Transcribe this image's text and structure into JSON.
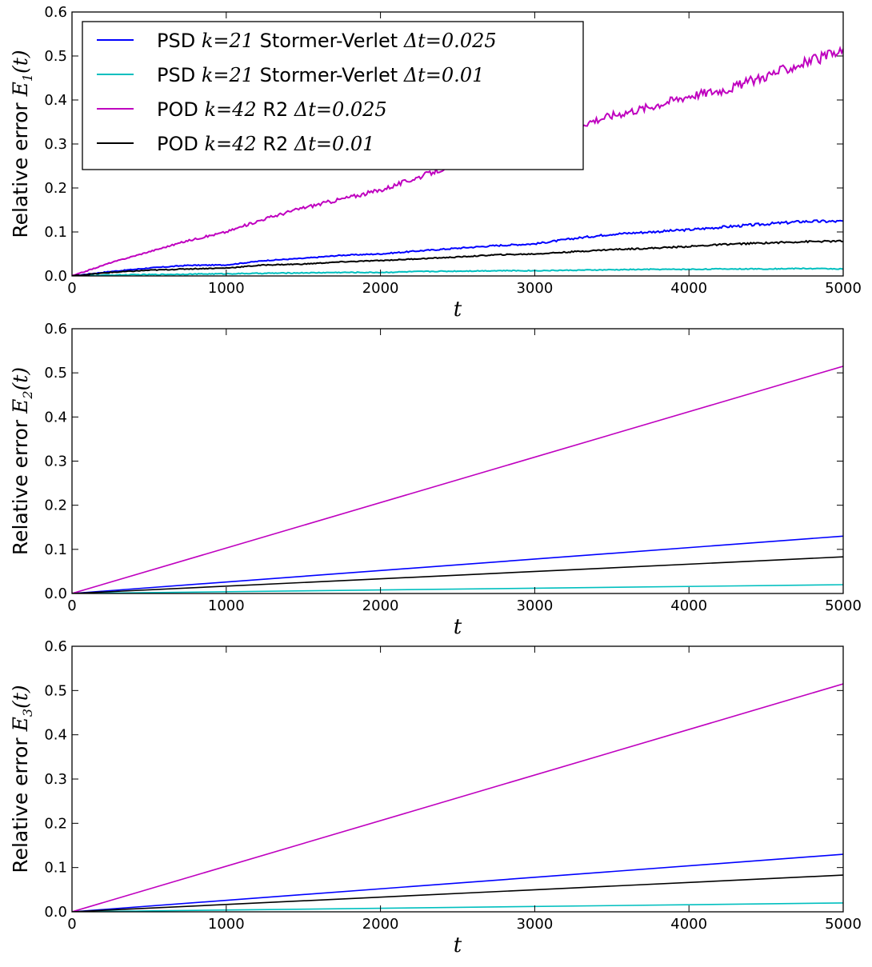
{
  "legend_entries": [
    {
      "pre": "PSD ",
      "math1": "k=21",
      "mid": " Stormer-Verlet ",
      "math2": "Δt=0.025",
      "color": "#0000ff"
    },
    {
      "pre": "PSD ",
      "math1": "k=21",
      "mid": " Stormer-Verlet ",
      "math2": "Δt=0.01",
      "color": "#00bfbf"
    },
    {
      "pre": "POD ",
      "math1": "k=42",
      "mid": " R2 ",
      "math2": "Δt=0.025",
      "color": "#bf00bf"
    },
    {
      "pre": "POD ",
      "math1": "k=42",
      "mid": " R2 ",
      "math2": "Δt=0.01",
      "color": "#000000"
    }
  ],
  "chart_data": [
    {
      "type": "line",
      "ylabel_text": "Relative error ",
      "ylabel_math": "E",
      "ylabel_sub": "1",
      "ylabel_arg": "(t)",
      "xlabel": "t",
      "xlim": [
        0,
        5000
      ],
      "ylim": [
        0,
        0.6
      ],
      "xticks": [
        "0",
        "1000",
        "2000",
        "3000",
        "4000",
        "5000"
      ],
      "yticks": [
        "0.0",
        "0.1",
        "0.2",
        "0.3",
        "0.4",
        "0.5",
        "0.6"
      ],
      "legend": "upper-left",
      "series": [
        {
          "name": "PSD k=21 Stormer-Verlet Δt=0.025",
          "color": "#0000ff",
          "x": [
            0,
            250,
            500,
            750,
            1000,
            1250,
            1500,
            1750,
            2000,
            2250,
            2500,
            2750,
            3000,
            3250,
            3500,
            3750,
            4000,
            4250,
            4500,
            4750,
            5000
          ],
          "y": [
            0,
            0.01,
            0.018,
            0.024,
            0.025,
            0.035,
            0.04,
            0.047,
            0.05,
            0.057,
            0.063,
            0.069,
            0.073,
            0.085,
            0.095,
            0.1,
            0.105,
            0.112,
            0.118,
            0.124,
            0.124
          ]
        },
        {
          "name": "PSD k=21 Stormer-Verlet Δt=0.01",
          "color": "#00bfbf",
          "x": [
            0,
            250,
            500,
            750,
            1000,
            1250,
            1500,
            1750,
            2000,
            2250,
            2500,
            2750,
            3000,
            3250,
            3500,
            3750,
            4000,
            4250,
            4500,
            4750,
            5000
          ],
          "y": [
            0,
            0.002,
            0.003,
            0.004,
            0.005,
            0.006,
            0.007,
            0.008,
            0.008,
            0.01,
            0.011,
            0.012,
            0.012,
            0.013,
            0.014,
            0.015,
            0.015,
            0.016,
            0.016,
            0.017,
            0.016
          ]
        },
        {
          "name": "POD k=42 R2 Δt=0.025",
          "color": "#bf00bf",
          "x": [
            0,
            250,
            500,
            750,
            1000,
            1250,
            1500,
            1750,
            2000,
            2250,
            2500,
            2750,
            3000,
            3250,
            3500,
            3750,
            4000,
            4250,
            4500,
            4750,
            5000
          ],
          "y": [
            0,
            0.03,
            0.055,
            0.08,
            0.1,
            0.13,
            0.155,
            0.175,
            0.195,
            0.225,
            0.255,
            0.28,
            0.305,
            0.34,
            0.365,
            0.385,
            0.41,
            0.425,
            0.455,
            0.485,
            0.51
          ]
        },
        {
          "name": "POD k=42 R2 Δt=0.01",
          "color": "#000000",
          "x": [
            0,
            250,
            500,
            750,
            1000,
            1250,
            1500,
            1750,
            2000,
            2250,
            2500,
            2750,
            3000,
            3250,
            3500,
            3750,
            4000,
            4250,
            4500,
            4750,
            5000
          ],
          "y": [
            0,
            0.008,
            0.013,
            0.016,
            0.018,
            0.025,
            0.027,
            0.032,
            0.035,
            0.039,
            0.043,
            0.048,
            0.05,
            0.055,
            0.06,
            0.063,
            0.067,
            0.072,
            0.075,
            0.078,
            0.079
          ]
        }
      ]
    },
    {
      "type": "line",
      "ylabel_text": "Relative error ",
      "ylabel_math": "E",
      "ylabel_sub": "2",
      "ylabel_arg": "(t)",
      "xlabel": "t",
      "xlim": [
        0,
        5000
      ],
      "ylim": [
        0,
        0.6
      ],
      "xticks": [
        "0",
        "1000",
        "2000",
        "3000",
        "4000",
        "5000"
      ],
      "yticks": [
        "0.0",
        "0.1",
        "0.2",
        "0.3",
        "0.4",
        "0.5",
        "0.6"
      ],
      "series": [
        {
          "name": "PSD k=21 Stormer-Verlet Δt=0.025",
          "color": "#0000ff",
          "x": [
            0,
            5000
          ],
          "y": [
            0,
            0.13
          ]
        },
        {
          "name": "PSD k=21 Stormer-Verlet Δt=0.01",
          "color": "#00bfbf",
          "x": [
            0,
            5000
          ],
          "y": [
            0,
            0.02
          ]
        },
        {
          "name": "POD k=42 R2 Δt=0.025",
          "color": "#bf00bf",
          "x": [
            0,
            5000
          ],
          "y": [
            0,
            0.515
          ]
        },
        {
          "name": "POD k=42 R2 Δt=0.01",
          "color": "#000000",
          "x": [
            0,
            5000
          ],
          "y": [
            0,
            0.083
          ]
        }
      ]
    },
    {
      "type": "line",
      "ylabel_text": "Relative error ",
      "ylabel_math": "E",
      "ylabel_sub": "3",
      "ylabel_arg": "(t)",
      "xlabel": "t",
      "xlim": [
        0,
        5000
      ],
      "ylim": [
        0,
        0.6
      ],
      "xticks": [
        "0",
        "1000",
        "2000",
        "3000",
        "4000",
        "5000"
      ],
      "yticks": [
        "0.0",
        "0.1",
        "0.2",
        "0.3",
        "0.4",
        "0.5",
        "0.6"
      ],
      "series": [
        {
          "name": "PSD k=21 Stormer-Verlet Δt=0.025",
          "color": "#0000ff",
          "x": [
            0,
            5000
          ],
          "y": [
            0,
            0.13
          ]
        },
        {
          "name": "PSD k=21 Stormer-Verlet Δt=0.01",
          "color": "#00bfbf",
          "x": [
            0,
            5000
          ],
          "y": [
            0,
            0.02
          ]
        },
        {
          "name": "POD k=42 R2 Δt=0.025",
          "color": "#bf00bf",
          "x": [
            0,
            5000
          ],
          "y": [
            0,
            0.515
          ]
        },
        {
          "name": "POD k=42 R2 Δt=0.01",
          "color": "#000000",
          "x": [
            0,
            5000
          ],
          "y": [
            0,
            0.083
          ]
        }
      ]
    }
  ]
}
